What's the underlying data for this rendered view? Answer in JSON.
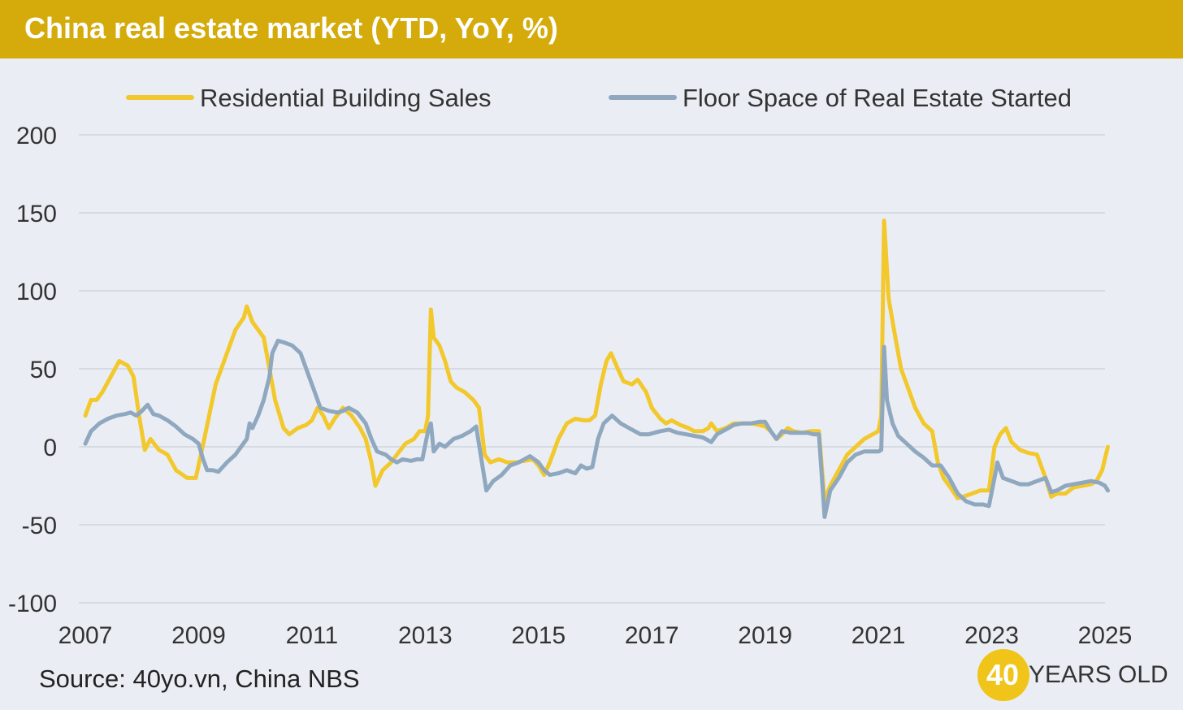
{
  "title": "China real estate market (YTD, YoY, %)",
  "source": "Source: 40yo.vn, China NBS",
  "logo": {
    "number": "40",
    "text": "YEARS OLD"
  },
  "colors": {
    "title_bar": "#d4ab0a",
    "sales": "#f2c82c",
    "floor": "#8fa8bf",
    "background": "#eaeef4"
  },
  "chart_data": {
    "type": "line",
    "title": "China real estate market (YTD, YoY, %)",
    "ylim": [
      -100,
      200
    ],
    "yticks": [
      200,
      150,
      100,
      50,
      0,
      -50,
      -100
    ],
    "xlim": [
      2007,
      2025
    ],
    "xticks": [
      2007,
      2009,
      2011,
      2013,
      2015,
      2017,
      2019,
      2021,
      2023,
      2025
    ],
    "grid": true,
    "legend_position": "top",
    "series": [
      {
        "name": "Residential Building Sales",
        "color": "#f2c82c",
        "points": [
          [
            2007.0,
            20
          ],
          [
            2007.1,
            30
          ],
          [
            2007.2,
            30
          ],
          [
            2007.3,
            35
          ],
          [
            2007.45,
            45
          ],
          [
            2007.6,
            55
          ],
          [
            2007.75,
            52
          ],
          [
            2007.85,
            45
          ],
          [
            2007.95,
            20
          ],
          [
            2008.05,
            -2
          ],
          [
            2008.15,
            5
          ],
          [
            2008.3,
            -2
          ],
          [
            2008.45,
            -5
          ],
          [
            2008.6,
            -15
          ],
          [
            2008.8,
            -20
          ],
          [
            2008.95,
            -20
          ],
          [
            2009.1,
            5
          ],
          [
            2009.3,
            40
          ],
          [
            2009.5,
            60
          ],
          [
            2009.65,
            75
          ],
          [
            2009.8,
            83
          ],
          [
            2009.85,
            90
          ],
          [
            2009.95,
            80
          ],
          [
            2010.05,
            75
          ],
          [
            2010.15,
            70
          ],
          [
            2010.25,
            50
          ],
          [
            2010.35,
            30
          ],
          [
            2010.5,
            12
          ],
          [
            2010.6,
            8
          ],
          [
            2010.75,
            12
          ],
          [
            2010.9,
            14
          ],
          [
            2011.0,
            17
          ],
          [
            2011.1,
            25
          ],
          [
            2011.2,
            20
          ],
          [
            2011.3,
            12
          ],
          [
            2011.4,
            18
          ],
          [
            2011.55,
            25
          ],
          [
            2011.7,
            20
          ],
          [
            2011.85,
            12
          ],
          [
            2011.95,
            5
          ],
          [
            2012.05,
            -10
          ],
          [
            2012.12,
            -25
          ],
          [
            2012.25,
            -15
          ],
          [
            2012.4,
            -10
          ],
          [
            2012.5,
            -5
          ],
          [
            2012.65,
            2
          ],
          [
            2012.8,
            5
          ],
          [
            2012.9,
            10
          ],
          [
            2013.0,
            10
          ],
          [
            2013.05,
            20
          ],
          [
            2013.1,
            88
          ],
          [
            2013.15,
            70
          ],
          [
            2013.25,
            65
          ],
          [
            2013.35,
            55
          ],
          [
            2013.45,
            42
          ],
          [
            2013.55,
            38
          ],
          [
            2013.7,
            35
          ],
          [
            2013.85,
            30
          ],
          [
            2013.95,
            25
          ],
          [
            2014.05,
            -5
          ],
          [
            2014.15,
            -10
          ],
          [
            2014.3,
            -8
          ],
          [
            2014.45,
            -10
          ],
          [
            2014.6,
            -10
          ],
          [
            2014.75,
            -9
          ],
          [
            2014.9,
            -8
          ],
          [
            2015.0,
            -12
          ],
          [
            2015.1,
            -18
          ],
          [
            2015.2,
            -10
          ],
          [
            2015.35,
            5
          ],
          [
            2015.5,
            15
          ],
          [
            2015.65,
            18
          ],
          [
            2015.8,
            17
          ],
          [
            2015.9,
            17
          ],
          [
            2016.0,
            20
          ],
          [
            2016.1,
            40
          ],
          [
            2016.2,
            55
          ],
          [
            2016.28,
            60
          ],
          [
            2016.4,
            50
          ],
          [
            2016.5,
            42
          ],
          [
            2016.65,
            40
          ],
          [
            2016.75,
            43
          ],
          [
            2016.9,
            35
          ],
          [
            2017.0,
            25
          ],
          [
            2017.15,
            18
          ],
          [
            2017.25,
            15
          ],
          [
            2017.35,
            17
          ],
          [
            2017.5,
            14
          ],
          [
            2017.65,
            12
          ],
          [
            2017.75,
            10
          ],
          [
            2017.9,
            10
          ],
          [
            2018.0,
            12
          ],
          [
            2018.05,
            15
          ],
          [
            2018.15,
            10
          ],
          [
            2018.3,
            12
          ],
          [
            2018.45,
            15
          ],
          [
            2018.6,
            15
          ],
          [
            2018.75,
            15
          ],
          [
            2018.9,
            14
          ],
          [
            2019.0,
            13
          ],
          [
            2019.1,
            10
          ],
          [
            2019.2,
            5
          ],
          [
            2019.3,
            8
          ],
          [
            2019.4,
            12
          ],
          [
            2019.5,
            10
          ],
          [
            2019.65,
            9
          ],
          [
            2019.8,
            10
          ],
          [
            2019.95,
            10
          ],
          [
            2020.05,
            -35
          ],
          [
            2020.15,
            -25
          ],
          [
            2020.3,
            -15
          ],
          [
            2020.45,
            -5
          ],
          [
            2020.6,
            0
          ],
          [
            2020.75,
            5
          ],
          [
            2020.9,
            8
          ],
          [
            2021.0,
            10
          ],
          [
            2021.05,
            20
          ],
          [
            2021.1,
            145
          ],
          [
            2021.18,
            95
          ],
          [
            2021.3,
            70
          ],
          [
            2021.4,
            50
          ],
          [
            2021.5,
            40
          ],
          [
            2021.65,
            25
          ],
          [
            2021.8,
            15
          ],
          [
            2021.95,
            10
          ],
          [
            2022.05,
            -10
          ],
          [
            2022.15,
            -20
          ],
          [
            2022.25,
            -25
          ],
          [
            2022.4,
            -33
          ],
          [
            2022.5,
            -32
          ],
          [
            2022.65,
            -30
          ],
          [
            2022.8,
            -28
          ],
          [
            2022.95,
            -28
          ],
          [
            2023.05,
            0
          ],
          [
            2023.15,
            8
          ],
          [
            2023.25,
            12
          ],
          [
            2023.35,
            3
          ],
          [
            2023.5,
            -2
          ],
          [
            2023.65,
            -4
          ],
          [
            2023.8,
            -5
          ],
          [
            2023.95,
            -20
          ],
          [
            2024.05,
            -32
          ],
          [
            2024.15,
            -30
          ],
          [
            2024.3,
            -30
          ],
          [
            2024.45,
            -26
          ],
          [
            2024.6,
            -25
          ],
          [
            2024.75,
            -24
          ],
          [
            2024.85,
            -22
          ],
          [
            2024.95,
            -15
          ],
          [
            2025.05,
            0
          ]
        ]
      },
      {
        "name": "Floor Space of Real Estate Started",
        "color": "#8fa8bf",
        "points": [
          [
            2007.0,
            2
          ],
          [
            2007.1,
            10
          ],
          [
            2007.25,
            15
          ],
          [
            2007.4,
            18
          ],
          [
            2007.55,
            20
          ],
          [
            2007.7,
            21
          ],
          [
            2007.8,
            22
          ],
          [
            2007.9,
            20
          ],
          [
            2008.0,
            23
          ],
          [
            2008.1,
            27
          ],
          [
            2008.2,
            21
          ],
          [
            2008.3,
            20
          ],
          [
            2008.45,
            17
          ],
          [
            2008.6,
            13
          ],
          [
            2008.75,
            8
          ],
          [
            2008.9,
            5
          ],
          [
            2009.0,
            2
          ],
          [
            2009.08,
            -8
          ],
          [
            2009.15,
            -15
          ],
          [
            2009.25,
            -15
          ],
          [
            2009.35,
            -16
          ],
          [
            2009.5,
            -10
          ],
          [
            2009.65,
            -5
          ],
          [
            2009.75,
            0
          ],
          [
            2009.85,
            5
          ],
          [
            2009.9,
            15
          ],
          [
            2009.95,
            12
          ],
          [
            2010.05,
            20
          ],
          [
            2010.15,
            30
          ],
          [
            2010.25,
            45
          ],
          [
            2010.3,
            60
          ],
          [
            2010.4,
            68
          ],
          [
            2010.5,
            67
          ],
          [
            2010.65,
            65
          ],
          [
            2010.8,
            60
          ],
          [
            2010.95,
            45
          ],
          [
            2011.05,
            35
          ],
          [
            2011.15,
            25
          ],
          [
            2011.3,
            23
          ],
          [
            2011.45,
            22
          ],
          [
            2011.55,
            23
          ],
          [
            2011.65,
            25
          ],
          [
            2011.8,
            22
          ],
          [
            2011.95,
            15
          ],
          [
            2012.05,
            5
          ],
          [
            2012.15,
            -3
          ],
          [
            2012.3,
            -5
          ],
          [
            2012.4,
            -8
          ],
          [
            2012.5,
            -10
          ],
          [
            2012.6,
            -8
          ],
          [
            2012.75,
            -9
          ],
          [
            2012.85,
            -8
          ],
          [
            2012.95,
            -8
          ],
          [
            2013.05,
            10
          ],
          [
            2013.1,
            15
          ],
          [
            2013.15,
            -3
          ],
          [
            2013.25,
            2
          ],
          [
            2013.35,
            0
          ],
          [
            2013.5,
            5
          ],
          [
            2013.65,
            7
          ],
          [
            2013.8,
            10
          ],
          [
            2013.9,
            13
          ],
          [
            2014.0,
            -10
          ],
          [
            2014.08,
            -28
          ],
          [
            2014.2,
            -22
          ],
          [
            2014.35,
            -18
          ],
          [
            2014.5,
            -12
          ],
          [
            2014.65,
            -10
          ],
          [
            2014.75,
            -8
          ],
          [
            2014.85,
            -6
          ],
          [
            2015.0,
            -10
          ],
          [
            2015.1,
            -15
          ],
          [
            2015.2,
            -18
          ],
          [
            2015.35,
            -17
          ],
          [
            2015.5,
            -15
          ],
          [
            2015.65,
            -17
          ],
          [
            2015.75,
            -12
          ],
          [
            2015.85,
            -14
          ],
          [
            2015.95,
            -13
          ],
          [
            2016.05,
            5
          ],
          [
            2016.15,
            15
          ],
          [
            2016.3,
            20
          ],
          [
            2016.45,
            15
          ],
          [
            2016.6,
            12
          ],
          [
            2016.7,
            10
          ],
          [
            2016.8,
            8
          ],
          [
            2016.95,
            8
          ],
          [
            2017.05,
            9
          ],
          [
            2017.15,
            10
          ],
          [
            2017.3,
            11
          ],
          [
            2017.45,
            9
          ],
          [
            2017.6,
            8
          ],
          [
            2017.75,
            7
          ],
          [
            2017.9,
            6
          ],
          [
            2018.05,
            3
          ],
          [
            2018.15,
            8
          ],
          [
            2018.3,
            11
          ],
          [
            2018.45,
            14
          ],
          [
            2018.6,
            15
          ],
          [
            2018.75,
            15
          ],
          [
            2018.9,
            16
          ],
          [
            2019.0,
            16
          ],
          [
            2019.1,
            10
          ],
          [
            2019.2,
            5
          ],
          [
            2019.3,
            10
          ],
          [
            2019.45,
            9
          ],
          [
            2019.6,
            9
          ],
          [
            2019.75,
            9
          ],
          [
            2019.85,
            8
          ],
          [
            2019.95,
            8
          ],
          [
            2020.05,
            -45
          ],
          [
            2020.15,
            -28
          ],
          [
            2020.3,
            -20
          ],
          [
            2020.45,
            -10
          ],
          [
            2020.6,
            -5
          ],
          [
            2020.75,
            -3
          ],
          [
            2020.9,
            -3
          ],
          [
            2021.0,
            -3
          ],
          [
            2021.05,
            -2
          ],
          [
            2021.1,
            64
          ],
          [
            2021.15,
            30
          ],
          [
            2021.25,
            15
          ],
          [
            2021.35,
            7
          ],
          [
            2021.5,
            2
          ],
          [
            2021.65,
            -3
          ],
          [
            2021.8,
            -7
          ],
          [
            2021.95,
            -12
          ],
          [
            2022.1,
            -12
          ],
          [
            2022.25,
            -20
          ],
          [
            2022.4,
            -30
          ],
          [
            2022.55,
            -35
          ],
          [
            2022.7,
            -37
          ],
          [
            2022.85,
            -37
          ],
          [
            2022.95,
            -38
          ],
          [
            2023.05,
            -20
          ],
          [
            2023.1,
            -10
          ],
          [
            2023.2,
            -20
          ],
          [
            2023.35,
            -22
          ],
          [
            2023.5,
            -24
          ],
          [
            2023.65,
            -24
          ],
          [
            2023.8,
            -22
          ],
          [
            2023.95,
            -20
          ],
          [
            2024.05,
            -29
          ],
          [
            2024.15,
            -28
          ],
          [
            2024.3,
            -25
          ],
          [
            2024.45,
            -24
          ],
          [
            2024.6,
            -23
          ],
          [
            2024.75,
            -22
          ],
          [
            2024.9,
            -23
          ],
          [
            2025.0,
            -25
          ],
          [
            2025.05,
            -28
          ]
        ]
      }
    ]
  }
}
